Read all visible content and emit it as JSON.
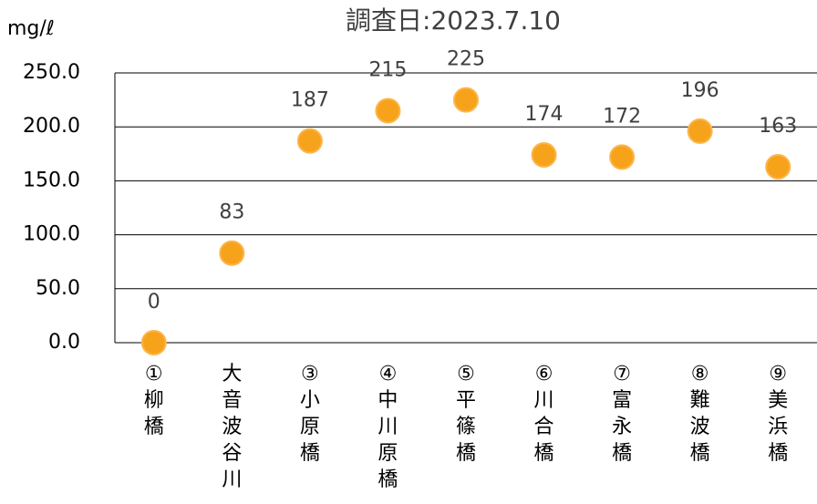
{
  "chart_data": {
    "type": "scatter",
    "title": "調査日:2023.7.10",
    "y_label": "mg/ℓ",
    "categories": [
      "①柳橋",
      "大音波谷川",
      "③小原橋",
      "④中川原橋",
      "⑤平篠橋",
      "⑥川合橋",
      "⑦富永橋",
      "⑧難波橋",
      "⑨美浜橋"
    ],
    "values": [
      0,
      83,
      187,
      215,
      225,
      174,
      172,
      196,
      163
    ],
    "color": "#f7a21b",
    "ylim": [
      0,
      250
    ],
    "yticks": [
      {
        "value": 0,
        "label": "0.0"
      },
      {
        "value": 50,
        "label": "50.0"
      },
      {
        "value": 100,
        "label": "100.0"
      },
      {
        "value": 150,
        "label": "150.0"
      },
      {
        "value": 200,
        "label": "200.0"
      },
      {
        "value": 250,
        "label": "250.0"
      }
    ],
    "grid": true
  }
}
